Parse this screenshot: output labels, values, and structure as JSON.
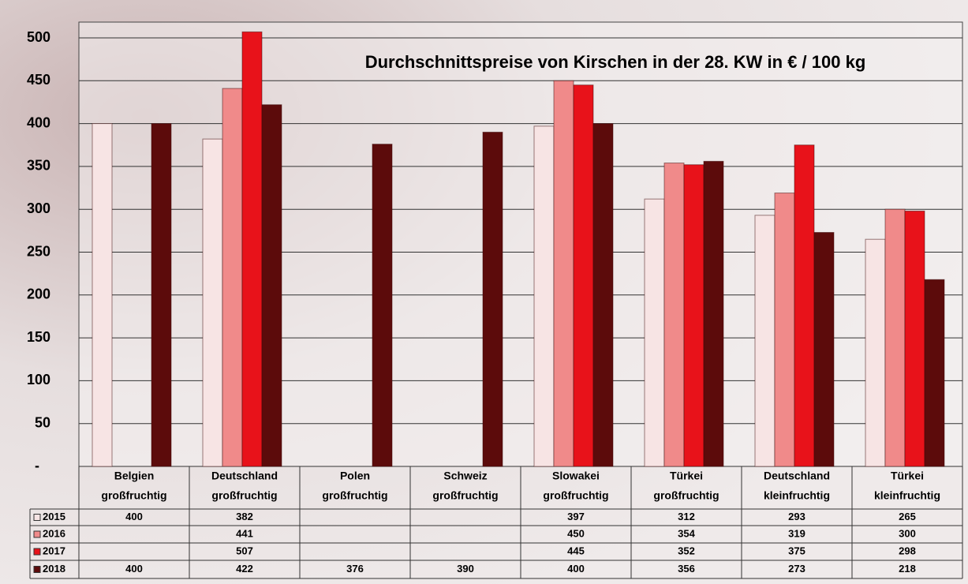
{
  "chart_data": {
    "type": "bar",
    "title": "Durchschnittspreise von Kirschen in der 28. KW in € / 100 kg",
    "categories": [
      [
        "Belgien",
        "großfruchtig"
      ],
      [
        "Deutschland",
        "großfruchtig"
      ],
      [
        "Polen",
        "großfruchtig"
      ],
      [
        "Schweiz",
        "großfruchtig"
      ],
      [
        "Slowakei",
        "großfruchtig"
      ],
      [
        "Türkei",
        "großfruchtig"
      ],
      [
        "Deutschland",
        "kleinfruchtig"
      ],
      [
        "Türkei",
        "kleinfruchtig"
      ]
    ],
    "series": [
      {
        "name": "2015",
        "color": "#f7e4e4",
        "values": [
          400,
          382,
          null,
          null,
          397,
          312,
          293,
          265
        ]
      },
      {
        "name": "2016",
        "color": "#f08a8a",
        "values": [
          null,
          441,
          null,
          null,
          450,
          354,
          319,
          300
        ]
      },
      {
        "name": "2017",
        "color": "#e8121a",
        "values": [
          null,
          507,
          null,
          null,
          445,
          352,
          375,
          298
        ]
      },
      {
        "name": "2018",
        "color": "#5c0b0b",
        "values": [
          400,
          422,
          376,
          390,
          400,
          356,
          273,
          218
        ]
      }
    ],
    "ylim": [
      0,
      500
    ],
    "yticks": [
      {
        "value": 0,
        "label": "-"
      },
      50,
      100,
      150,
      200,
      250,
      300,
      350,
      400,
      450,
      500
    ],
    "grid": true
  }
}
